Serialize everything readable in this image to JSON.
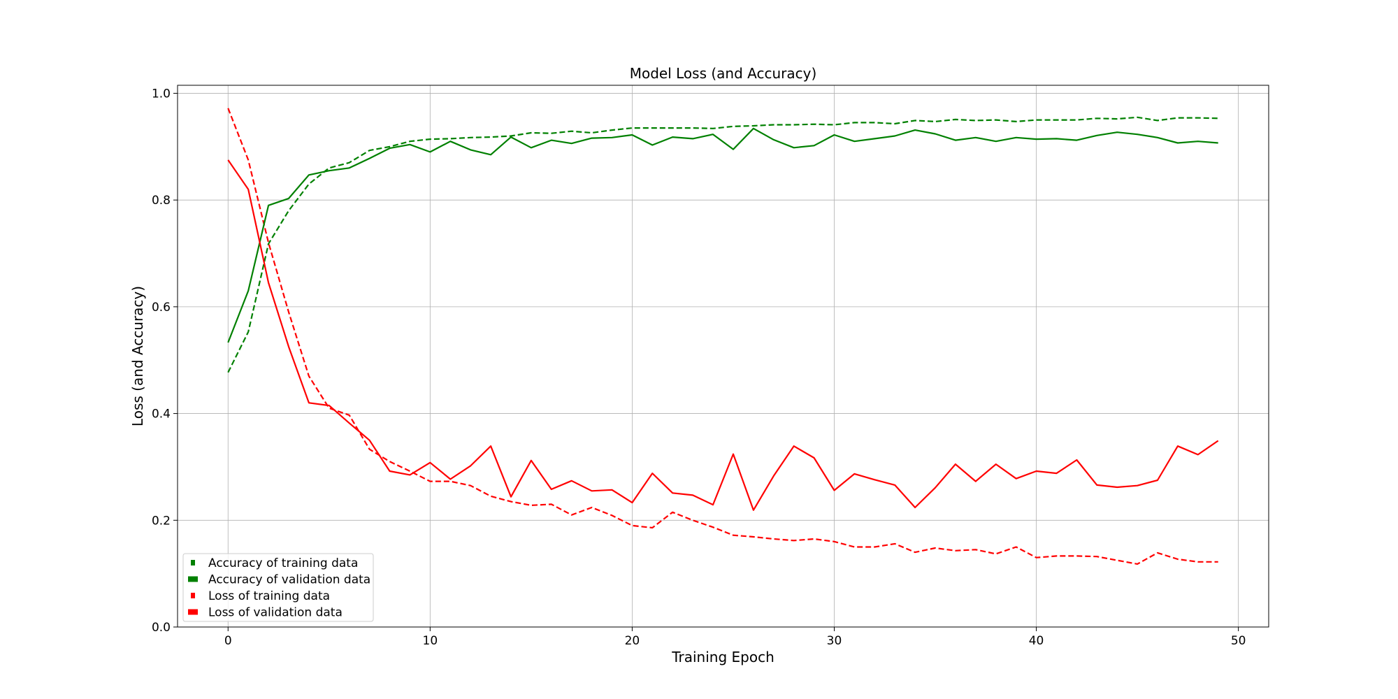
{
  "chart_data": {
    "type": "line",
    "title": "Model Loss (and Accuracy)",
    "xlabel": "Training Epoch",
    "ylabel": "Loss (and Accuracy)",
    "xlim": [
      -2.5,
      51.5
    ],
    "ylim": [
      0.0,
      1.015
    ],
    "x_ticks": [
      0,
      10,
      20,
      30,
      40,
      50
    ],
    "y_ticks": [
      0.0,
      0.2,
      0.4,
      0.6,
      0.8,
      1.0
    ],
    "x_tick_labels": [
      "0",
      "10",
      "20",
      "30",
      "40",
      "50"
    ],
    "y_tick_labels": [
      "0.0",
      "0.2",
      "0.4",
      "0.6",
      "0.8",
      "1.0"
    ],
    "grid": true,
    "legend_position": "lower-left",
    "x": [
      0,
      1,
      2,
      3,
      4,
      5,
      6,
      7,
      8,
      9,
      10,
      11,
      12,
      13,
      14,
      15,
      16,
      17,
      18,
      19,
      20,
      21,
      22,
      23,
      24,
      25,
      26,
      27,
      28,
      29,
      30,
      31,
      32,
      33,
      34,
      35,
      36,
      37,
      38,
      39,
      40,
      41,
      42,
      43,
      44,
      45,
      46,
      47,
      48,
      49
    ],
    "series": [
      {
        "name": "Accuracy of training data",
        "color": "#008000",
        "style": "dashed",
        "values": [
          0.477,
          0.553,
          0.718,
          0.78,
          0.83,
          0.86,
          0.87,
          0.893,
          0.9,
          0.91,
          0.914,
          0.915,
          0.917,
          0.918,
          0.92,
          0.926,
          0.925,
          0.929,
          0.926,
          0.931,
          0.935,
          0.935,
          0.935,
          0.935,
          0.934,
          0.938,
          0.939,
          0.941,
          0.941,
          0.942,
          0.941,
          0.945,
          0.945,
          0.943,
          0.949,
          0.947,
          0.951,
          0.949,
          0.95,
          0.947,
          0.95,
          0.95,
          0.95,
          0.953,
          0.952,
          0.955,
          0.949,
          0.954,
          0.954,
          0.953
        ]
      },
      {
        "name": "Accuracy of validation data",
        "color": "#008000",
        "style": "solid",
        "values": [
          0.533,
          0.63,
          0.79,
          0.803,
          0.847,
          0.855,
          0.86,
          0.878,
          0.897,
          0.904,
          0.89,
          0.91,
          0.894,
          0.885,
          0.918,
          0.898,
          0.912,
          0.906,
          0.916,
          0.917,
          0.922,
          0.903,
          0.918,
          0.915,
          0.923,
          0.895,
          0.934,
          0.913,
          0.898,
          0.902,
          0.922,
          0.91,
          0.915,
          0.92,
          0.931,
          0.924,
          0.912,
          0.917,
          0.91,
          0.917,
          0.914,
          0.915,
          0.912,
          0.921,
          0.927,
          0.923,
          0.917,
          0.907,
          0.91,
          0.907
        ]
      },
      {
        "name": "Loss of training data",
        "color": "#ff0000",
        "style": "dashed",
        "values": [
          0.972,
          0.875,
          0.72,
          0.59,
          0.47,
          0.41,
          0.397,
          0.333,
          0.31,
          0.292,
          0.273,
          0.273,
          0.265,
          0.245,
          0.235,
          0.228,
          0.23,
          0.21,
          0.224,
          0.209,
          0.19,
          0.186,
          0.215,
          0.2,
          0.187,
          0.172,
          0.169,
          0.165,
          0.162,
          0.165,
          0.16,
          0.15,
          0.15,
          0.156,
          0.14,
          0.148,
          0.143,
          0.145,
          0.137,
          0.15,
          0.13,
          0.133,
          0.133,
          0.132,
          0.125,
          0.118,
          0.139,
          0.127,
          0.122,
          0.122
        ]
      },
      {
        "name": "Loss of validation data",
        "color": "#ff0000",
        "style": "solid",
        "values": [
          0.875,
          0.82,
          0.645,
          0.525,
          0.42,
          0.415,
          0.382,
          0.35,
          0.292,
          0.285,
          0.308,
          0.277,
          0.302,
          0.339,
          0.244,
          0.312,
          0.258,
          0.274,
          0.255,
          0.257,
          0.233,
          0.288,
          0.251,
          0.247,
          0.229,
          0.324,
          0.219,
          0.283,
          0.339,
          0.317,
          0.256,
          0.287,
          0.276,
          0.266,
          0.224,
          0.261,
          0.305,
          0.273,
          0.305,
          0.278,
          0.292,
          0.288,
          0.313,
          0.266,
          0.262,
          0.265,
          0.275,
          0.339,
          0.323,
          0.349
        ]
      }
    ]
  }
}
